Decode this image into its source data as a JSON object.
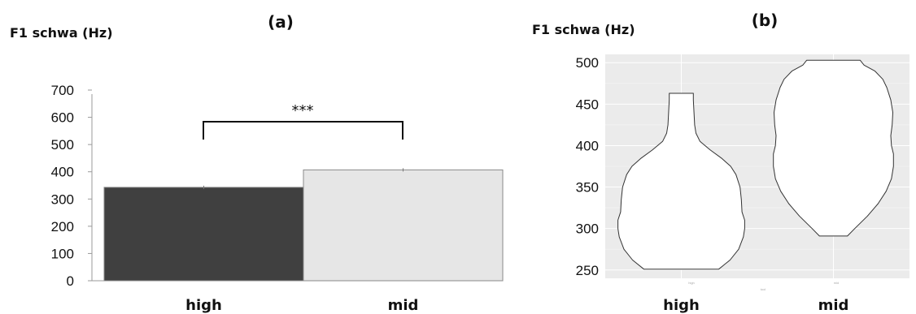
{
  "chart_data": [
    {
      "type": "bar",
      "title": "(a)",
      "ylabel": "F1 schwa (Hz)",
      "categories": [
        "high",
        "mid"
      ],
      "values": [
        343,
        407
      ],
      "errors": [
        6,
        6
      ],
      "ylim": [
        0,
        700
      ],
      "yticks": [
        0,
        100,
        200,
        300,
        400,
        500,
        600,
        700
      ],
      "bar_colors": [
        "#404040",
        "#e6e6e6"
      ],
      "significance": "***",
      "grid": false
    },
    {
      "type": "violin",
      "title": "(b)",
      "ylabel": "F1 schwa (Hz)",
      "categories": [
        "high",
        "mid"
      ],
      "ylim": [
        240,
        510
      ],
      "yticks": [
        250,
        300,
        350,
        400,
        450,
        500
      ],
      "violins": [
        {
          "name": "high",
          "min": 251,
          "max": 463,
          "profile": [
            [
              251,
              0.56
            ],
            [
              262,
              0.73
            ],
            [
              275,
              0.86
            ],
            [
              290,
              0.93
            ],
            [
              300,
              0.95
            ],
            [
              310,
              0.95
            ],
            [
              320,
              0.91
            ],
            [
              335,
              0.9
            ],
            [
              350,
              0.88
            ],
            [
              365,
              0.82
            ],
            [
              375,
              0.74
            ],
            [
              385,
              0.6
            ],
            [
              395,
              0.43
            ],
            [
              405,
              0.28
            ],
            [
              415,
              0.22
            ],
            [
              425,
              0.2
            ],
            [
              440,
              0.19
            ],
            [
              455,
              0.18
            ],
            [
              463,
              0.18
            ]
          ]
        },
        {
          "name": "mid",
          "min": 291,
          "max": 503,
          "profile": [
            [
              291,
              0.21
            ],
            [
              300,
              0.32
            ],
            [
              315,
              0.51
            ],
            [
              330,
              0.67
            ],
            [
              345,
              0.79
            ],
            [
              360,
              0.87
            ],
            [
              375,
              0.9
            ],
            [
              390,
              0.9
            ],
            [
              400,
              0.87
            ],
            [
              412,
              0.86
            ],
            [
              425,
              0.88
            ],
            [
              440,
              0.89
            ],
            [
              455,
              0.86
            ],
            [
              470,
              0.8
            ],
            [
              480,
              0.74
            ],
            [
              490,
              0.62
            ],
            [
              497,
              0.46
            ],
            [
              503,
              0.4
            ]
          ]
        }
      ],
      "panel_bg": "#ebebeb",
      "grid": true,
      "faint_labels": [
        "high",
        "tool",
        "mid"
      ]
    }
  ]
}
